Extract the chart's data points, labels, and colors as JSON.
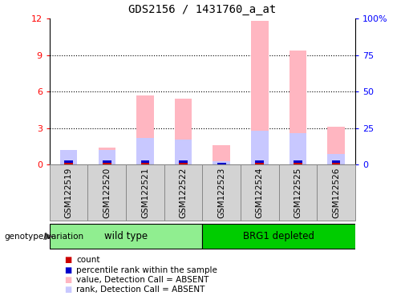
{
  "title": "GDS2156 / 1431760_a_at",
  "samples": [
    "GSM122519",
    "GSM122520",
    "GSM122521",
    "GSM122522",
    "GSM122523",
    "GSM122524",
    "GSM122525",
    "GSM122526"
  ],
  "groups": [
    {
      "label": "wild type",
      "color": "#90EE90",
      "samples": [
        0,
        1,
        2,
        3
      ]
    },
    {
      "label": "BRG1 depleted",
      "color": "#00CC00",
      "samples": [
        4,
        5,
        6,
        7
      ]
    }
  ],
  "count": [
    1,
    1,
    1,
    1,
    0,
    1,
    1,
    1
  ],
  "percentile_rank": [
    1.5,
    1.2,
    2.2,
    2.1,
    0.3,
    2.8,
    2.6,
    0.9
  ],
  "value_absent": [
    1.2,
    1.4,
    5.7,
    5.4,
    1.6,
    11.8,
    9.4,
    3.1
  ],
  "rank_absent": [
    1.2,
    1.2,
    2.2,
    2.1,
    0.3,
    2.8,
    2.6,
    0.9
  ],
  "ylim_left": [
    0,
    12
  ],
  "ylim_right": [
    0,
    100
  ],
  "yticks_left": [
    0,
    3,
    6,
    9,
    12
  ],
  "yticks_right": [
    0,
    25,
    50,
    75,
    100
  ],
  "yticklabels_right": [
    "0",
    "25",
    "50",
    "75",
    "100%"
  ],
  "bar_width": 0.45,
  "colors": {
    "count": "#CC0000",
    "percentile_rank": "#0000CC",
    "value_absent": "#FFB6C1",
    "rank_absent": "#C8C8FF",
    "grid": "black",
    "bg_plot": "white",
    "bg_xtick": "#D3D3D3",
    "bg_xtick_border": "#888888"
  },
  "legend_items": [
    {
      "color": "#CC0000",
      "label": "count"
    },
    {
      "color": "#0000CC",
      "label": "percentile rank within the sample"
    },
    {
      "color": "#FFB6C1",
      "label": "value, Detection Call = ABSENT"
    },
    {
      "color": "#C8C8FF",
      "label": "rank, Detection Call = ABSENT"
    }
  ]
}
